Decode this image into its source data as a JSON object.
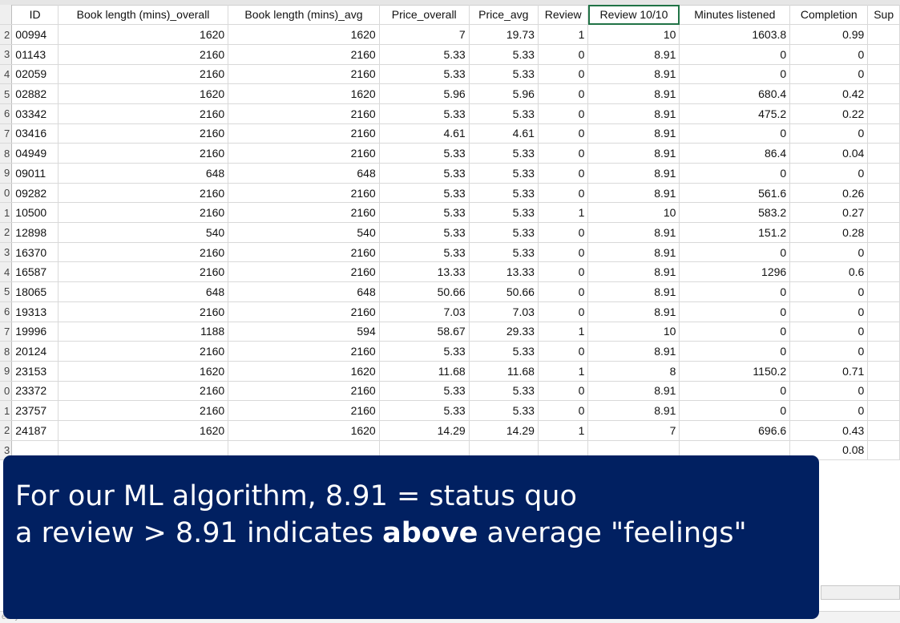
{
  "sheet": {
    "columns": [
      "ID",
      "Book length (mins)_overall",
      "Book length (mins)_avg",
      "Price_overall",
      "Price_avg",
      "Review",
      "Review 10/10",
      "Minutes listened",
      "Completion",
      "Sup"
    ],
    "row_numbers": [
      "",
      "2",
      "3",
      "4",
      "5",
      "6",
      "7",
      "8",
      "9",
      "0",
      "1",
      "2",
      "3",
      "4",
      "5",
      "6",
      "7",
      "8",
      "9",
      "0",
      "1",
      "2",
      "3"
    ],
    "rows": [
      [
        "00994",
        "1620",
        "1620",
        "7",
        "19.73",
        "1",
        "10",
        "1603.8",
        "0.99",
        ""
      ],
      [
        "01143",
        "2160",
        "2160",
        "5.33",
        "5.33",
        "0",
        "8.91",
        "0",
        "0",
        ""
      ],
      [
        "02059",
        "2160",
        "2160",
        "5.33",
        "5.33",
        "0",
        "8.91",
        "0",
        "0",
        ""
      ],
      [
        "02882",
        "1620",
        "1620",
        "5.96",
        "5.96",
        "0",
        "8.91",
        "680.4",
        "0.42",
        ""
      ],
      [
        "03342",
        "2160",
        "2160",
        "5.33",
        "5.33",
        "0",
        "8.91",
        "475.2",
        "0.22",
        ""
      ],
      [
        "03416",
        "2160",
        "2160",
        "4.61",
        "4.61",
        "0",
        "8.91",
        "0",
        "0",
        ""
      ],
      [
        "04949",
        "2160",
        "2160",
        "5.33",
        "5.33",
        "0",
        "8.91",
        "86.4",
        "0.04",
        ""
      ],
      [
        "09011",
        "648",
        "648",
        "5.33",
        "5.33",
        "0",
        "8.91",
        "0",
        "0",
        ""
      ],
      [
        "09282",
        "2160",
        "2160",
        "5.33",
        "5.33",
        "0",
        "8.91",
        "561.6",
        "0.26",
        ""
      ],
      [
        "10500",
        "2160",
        "2160",
        "5.33",
        "5.33",
        "1",
        "10",
        "583.2",
        "0.27",
        ""
      ],
      [
        "12898",
        "540",
        "540",
        "5.33",
        "5.33",
        "0",
        "8.91",
        "151.2",
        "0.28",
        ""
      ],
      [
        "16370",
        "2160",
        "2160",
        "5.33",
        "5.33",
        "0",
        "8.91",
        "0",
        "0",
        ""
      ],
      [
        "16587",
        "2160",
        "2160",
        "13.33",
        "13.33",
        "0",
        "8.91",
        "1296",
        "0.6",
        ""
      ],
      [
        "18065",
        "648",
        "648",
        "50.66",
        "50.66",
        "0",
        "8.91",
        "0",
        "0",
        ""
      ],
      [
        "19313",
        "2160",
        "2160",
        "7.03",
        "7.03",
        "0",
        "8.91",
        "0",
        "0",
        ""
      ],
      [
        "19996",
        "1188",
        "594",
        "58.67",
        "29.33",
        "1",
        "10",
        "0",
        "0",
        ""
      ],
      [
        "20124",
        "2160",
        "2160",
        "5.33",
        "5.33",
        "0",
        "8.91",
        "0",
        "0",
        ""
      ],
      [
        "23153",
        "1620",
        "1620",
        "11.68",
        "11.68",
        "1",
        "8",
        "1150.2",
        "0.71",
        ""
      ],
      [
        "23372",
        "2160",
        "2160",
        "5.33",
        "5.33",
        "0",
        "8.91",
        "0",
        "0",
        ""
      ],
      [
        "23757",
        "2160",
        "2160",
        "5.33",
        "5.33",
        "0",
        "8.91",
        "0",
        "0",
        ""
      ],
      [
        "24187",
        "1620",
        "1620",
        "14.29",
        "14.29",
        "1",
        "7",
        "696.6",
        "0.43",
        ""
      ],
      [
        "",
        "",
        "",
        "",
        "",
        "",
        "",
        "",
        "0.08",
        ""
      ]
    ],
    "status_text": "eady"
  },
  "callout": {
    "line1": "For our ML algorithm, 8.91 = status quo",
    "line2_prefix": "a review > 8.91 indicates ",
    "line2_bold": "above",
    "line2_suffix": " average \"feelings\""
  },
  "colors": {
    "callout_bg": "#012061",
    "active_cell_border": "#217346",
    "gridline": "#d9d9d9"
  }
}
